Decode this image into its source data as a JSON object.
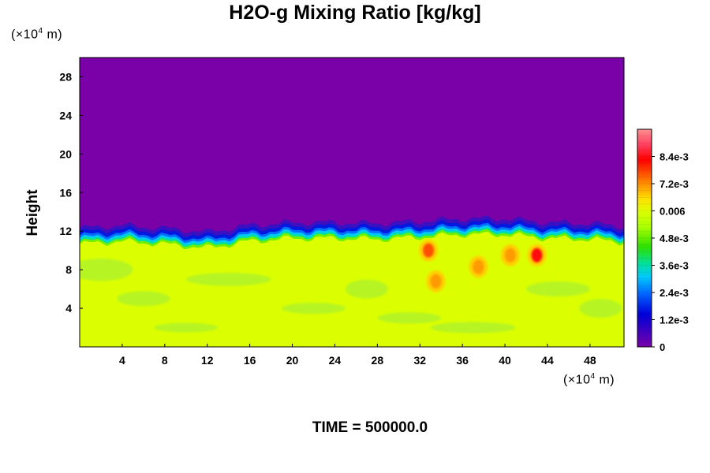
{
  "chart_data": {
    "type": "heatmap",
    "title": "H2O-g Mixing Ratio [kg/kg]",
    "ylabel": "Height",
    "xlabel": "",
    "x_unit_label": "(×10⁴ m)",
    "y_unit_label": "(×10⁴ m)",
    "xlim": [
      0,
      51.2
    ],
    "ylim": [
      0,
      30
    ],
    "x_ticks": [
      "4",
      "8",
      "12",
      "16",
      "20",
      "24",
      "28",
      "32",
      "36",
      "40",
      "44",
      "48"
    ],
    "y_ticks": [
      "4",
      "8",
      "12",
      "16",
      "20",
      "24",
      "28"
    ],
    "colorbar": {
      "range": [
        0,
        0.0096
      ],
      "tick_labels": [
        "0",
        "1.2e-3",
        "2.4e-3",
        "3.6e-3",
        "4.8e-3",
        "0.006",
        "7.2e-3",
        "8.4e-3"
      ],
      "tick_values": [
        0,
        0.0012,
        0.0024,
        0.0036,
        0.0048,
        0.006,
        0.0072,
        0.0084
      ]
    },
    "field_description_values": {
      "upper_layer_value": 0,
      "lower_layer_value": 0.006,
      "boundary_height_profile": {
        "x": [
          0,
          4,
          8,
          12,
          16,
          20,
          24,
          28,
          32,
          36,
          40,
          44,
          48,
          51.2
        ],
        "y": [
          11.0,
          11.3,
          11.0,
          10.6,
          11.3,
          11.6,
          11.6,
          11.5,
          11.7,
          12.0,
          12.0,
          11.6,
          11.5,
          11.2
        ]
      },
      "high_value_patches": [
        {
          "x": 32.8,
          "y": 10.0,
          "value": 0.0075
        },
        {
          "x": 33.5,
          "y": 6.8,
          "value": 0.0072
        },
        {
          "x": 37.5,
          "y": 8.3,
          "value": 0.0072
        },
        {
          "x": 43.0,
          "y": 9.5,
          "value": 0.0088
        },
        {
          "x": 40.5,
          "y": 9.5,
          "value": 0.007
        }
      ]
    },
    "colors": {
      "upper": "#7a00a8",
      "lower": "#dbff00"
    }
  },
  "footer": {
    "time_label": "TIME = 500000.0"
  }
}
